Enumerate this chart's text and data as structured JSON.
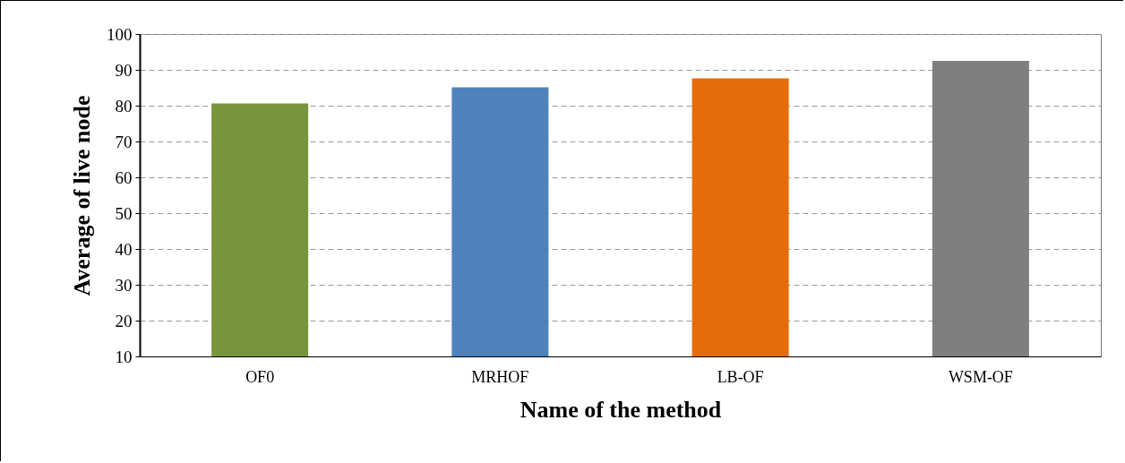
{
  "chart_data": {
    "type": "bar",
    "xlabel": "Name of the method",
    "ylabel": "Average of live node",
    "categories": [
      "OF0",
      "MRHOF",
      "LB-OF",
      "WSM-OF"
    ],
    "values": [
      80.6,
      85.1,
      87.6,
      92.5
    ],
    "colors": [
      "#77963b",
      "#4f81bd",
      "#e46c0a",
      "#7f7f7f"
    ],
    "ylim": [
      10,
      100
    ],
    "yticks": [
      10,
      20,
      30,
      40,
      50,
      60,
      70,
      80,
      90,
      100
    ],
    "grid": "y"
  }
}
